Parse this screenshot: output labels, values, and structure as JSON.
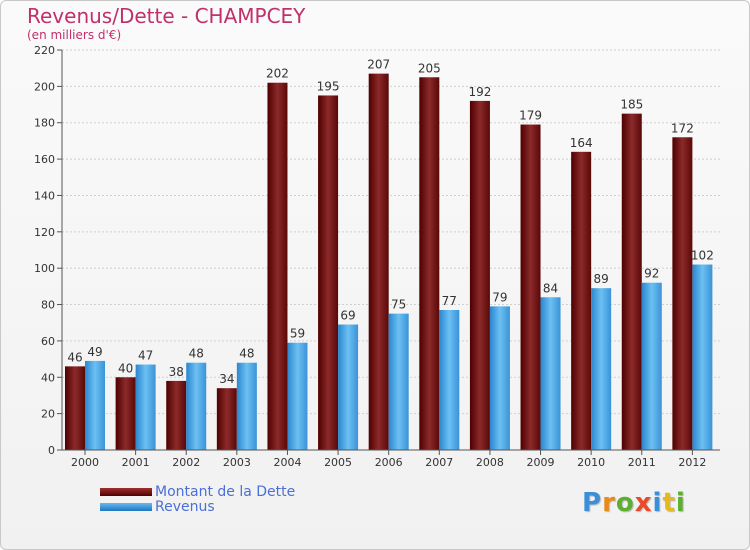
{
  "title": "Revenus/Dette - CHAMPCEY",
  "subtitle": "(en milliers d'€)",
  "legend": {
    "debt_label": "Montant de la Dette",
    "revenue_label": "Revenus"
  },
  "logo": "Proxiti",
  "colors": {
    "title": "#c0306a",
    "debt": "#7a1010",
    "revenue": "#4fa4e2",
    "legend_text": "#4a6fd8"
  },
  "chart_data": {
    "type": "bar",
    "title": "Revenus/Dette - CHAMPCEY",
    "ylabel": "(en milliers d'€)",
    "xlabel": "",
    "categories": [
      "2000",
      "2001",
      "2002",
      "2003",
      "2004",
      "2005",
      "2006",
      "2007",
      "2008",
      "2009",
      "2010",
      "2011",
      "2012"
    ],
    "series": [
      {
        "name": "Montant de la Dette",
        "values": [
          46,
          40,
          38,
          34,
          202,
          195,
          207,
          205,
          192,
          179,
          164,
          185,
          172
        ]
      },
      {
        "name": "Revenus",
        "values": [
          49,
          47,
          48,
          48,
          59,
          69,
          75,
          77,
          79,
          84,
          89,
          92,
          102
        ]
      }
    ],
    "ylim": [
      0,
      220
    ],
    "yticks": [
      0,
      20,
      40,
      60,
      80,
      100,
      120,
      140,
      160,
      180,
      200,
      220
    ],
    "grid": true,
    "legend": "bottom-left"
  }
}
